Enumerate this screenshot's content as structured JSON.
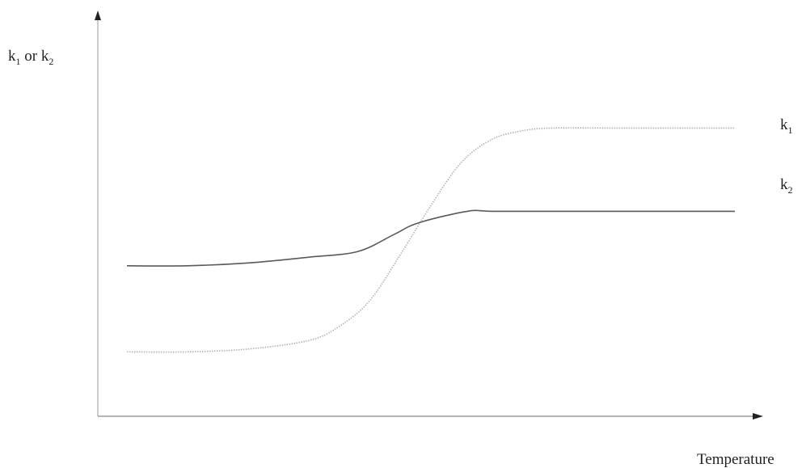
{
  "chart_data": {
    "type": "line",
    "title": "",
    "xlabel": "Temperature",
    "ylabel": {
      "prefix": "k",
      "sub1": "1",
      "middle": " or k",
      "sub2": "2"
    },
    "xlim": [
      0,
      100
    ],
    "ylim": [
      0,
      100
    ],
    "grid": false,
    "legend": "right, at line ends",
    "series": [
      {
        "name": "k1",
        "label_letter": "k",
        "label_sub": "1",
        "color": "#b3b3b3",
        "style": "dotted",
        "x": [
          0,
          10,
          20,
          30,
          35,
          40,
          45,
          50,
          55,
          60,
          65,
          70,
          80,
          90,
          100
        ],
        "y": [
          14,
          14,
          15,
          18,
          23,
          32,
          48,
          65,
          80,
          88,
          91,
          92,
          92,
          92,
          92
        ]
      },
      {
        "name": "k2",
        "label_letter": "k",
        "label_sub": "2",
        "color": "#5a5a5a",
        "style": "solid",
        "x": [
          0,
          10,
          20,
          30,
          38,
          44,
          48,
          56,
          60,
          70,
          80,
          90,
          100
        ],
        "y": [
          44,
          44,
          45,
          47,
          49,
          55,
          59,
          63,
          63,
          63,
          63,
          63,
          63
        ]
      }
    ]
  }
}
